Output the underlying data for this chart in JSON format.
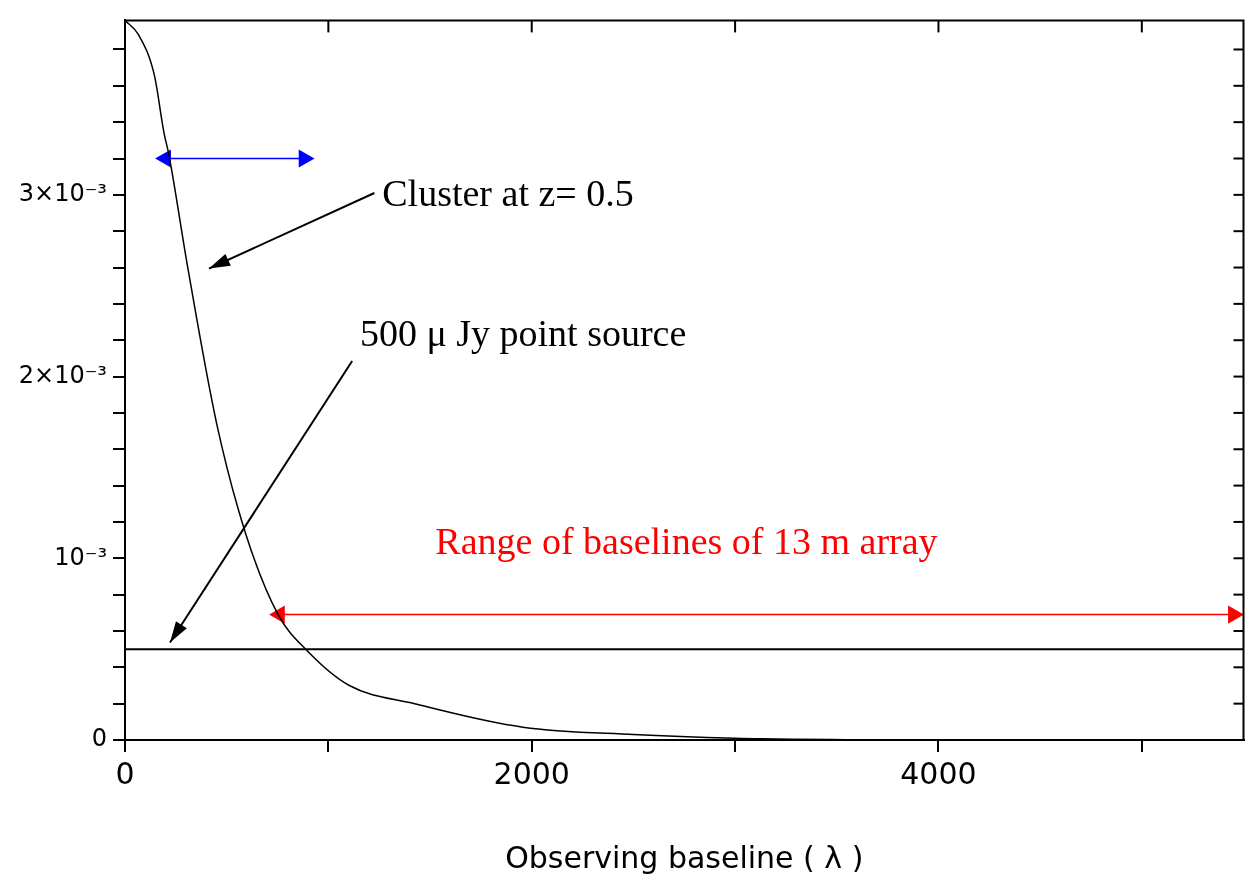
{
  "chart_data": {
    "type": "line",
    "xlabel": "Observing baseline ( λ )",
    "series": [
      {
        "color": "#000000",
        "x": [
          0,
          67,
          144,
          192,
          216,
          307,
          451,
          595,
          753,
          897,
          1103,
          1424,
          1957,
          2500,
          3000,
          3703
        ],
        "values": [
          0.00396,
          0.00388,
          0.00366,
          0.00334,
          0.00322,
          0.00261,
          0.00174,
          0.00113,
          0.00069,
          0.00049,
          0.0003,
          0.0002,
          7e-05,
          3e-05,
          1e-05,
          0
        ]
      },
      {
        "color": "#0000ff",
        "x": [
          200,
          880
        ],
        "values": [
          0.0032,
          0.0032
        ],
        "marker": "triangle"
      },
      {
        "name": "Range of baselines of 13 m array",
        "color": "#ff0000",
        "x": [
          760,
          5450
        ],
        "values": [
          0.00069,
          0.00069
        ],
        "marker": "triangle"
      }
    ],
    "xlim": [
      0,
      5500
    ],
    "xticks": [
      0,
      {
        "value": 1000,
        "label": null
      },
      2000,
      {
        "value": 3000,
        "label": null
      },
      4000,
      {
        "value": 5000,
        "label": null
      }
    ],
    "ylim": [
      0,
      0.00396
    ],
    "yticks": [
      {
        "value": 0,
        "label": "0"
      },
      {
        "value": 0.0002,
        "label": null
      },
      {
        "value": 0.0004,
        "label": null
      },
      {
        "value": 0.0006,
        "label": null
      },
      {
        "value": 0.0008,
        "label": null
      },
      {
        "value": 0.001,
        "label": "10⁻³"
      },
      {
        "value": 0.0012,
        "label": null
      },
      {
        "value": 0.0014,
        "label": null
      },
      {
        "value": 0.0016,
        "label": null
      },
      {
        "value": 0.0018,
        "label": null
      },
      {
        "value": 0.002,
        "label": "2×10⁻³"
      },
      {
        "value": 0.0022,
        "label": null
      },
      {
        "value": 0.0024,
        "label": null
      },
      {
        "value": 0.0026,
        "label": null
      },
      {
        "value": 0.0028,
        "label": null
      },
      {
        "value": 0.003,
        "label": "3×10⁻³"
      },
      {
        "value": 0.0032,
        "label": null
      },
      {
        "value": 0.0034,
        "label": null
      },
      {
        "value": 0.0036,
        "label": null
      },
      {
        "value": 0.0038,
        "label": null
      }
    ],
    "ref_lines": [
      {
        "axis": "y",
        "value": 0.0005,
        "color": "#000000"
      }
    ],
    "annotations": [
      "Cluster at z= 0.5",
      "500 μ Jy point source"
    ],
    "grid": false,
    "legend": false,
    "marker": "none",
    "line_style": "solid"
  }
}
